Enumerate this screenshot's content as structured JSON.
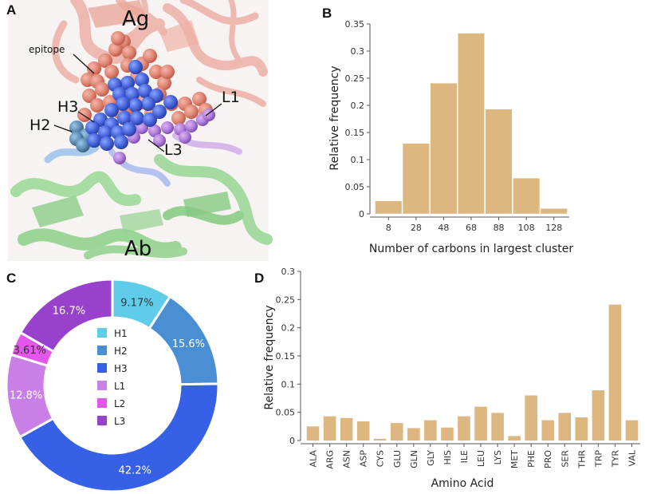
{
  "panels": {
    "a": {
      "letter": "A",
      "labels": {
        "ag": "Ag",
        "ab": "Ab",
        "epitope": "epitope",
        "h3": "H3",
        "h2": "H2",
        "l1": "L1",
        "l3": "L3"
      }
    },
    "b": {
      "letter": "B"
    },
    "c": {
      "letter": "C"
    },
    "d": {
      "letter": "D"
    }
  },
  "colors": {
    "bar": "#ddb77f",
    "H1": "#5fcdea",
    "H2": "#4a8fd4",
    "H3": "#3660e6",
    "L1": "#c97fe6",
    "L2": "#e455ea",
    "L3": "#9841cc"
  },
  "chart_data": [
    {
      "id": "b",
      "type": "bar",
      "categories": [
        "8",
        "28",
        "48",
        "68",
        "88",
        "108",
        "128"
      ],
      "bin_edges": [
        -2,
        18,
        38,
        58,
        78,
        98,
        118,
        138
      ],
      "values": [
        0.024,
        0.13,
        0.241,
        0.333,
        0.193,
        0.066,
        0.01
      ],
      "xlabel": "Number of carbons in largest cluster",
      "ylabel": "Relative frequency",
      "ylim": [
        0,
        0.35
      ],
      "yticks": [
        "0",
        "0.05",
        "0.1",
        "0.15",
        "0.2",
        "0.25",
        "0.3",
        "0.35"
      ]
    },
    {
      "id": "c",
      "type": "pie",
      "labels": [
        "H1",
        "H2",
        "H3",
        "L1",
        "L2",
        "L3"
      ],
      "values": [
        9.17,
        15.6,
        42.2,
        12.8,
        3.61,
        16.7
      ],
      "value_labels": [
        "9.17%",
        "15.6%",
        "42.2%",
        "12.8%",
        "3.61%",
        "16.7%"
      ],
      "legend": "center"
    },
    {
      "id": "d",
      "type": "bar",
      "categories": [
        "ALA",
        "ARG",
        "ASN",
        "ASP",
        "CYS",
        "GLU",
        "GLN",
        "GLY",
        "HIS",
        "ILE",
        "LEU",
        "LYS",
        "MET",
        "PHE",
        "PRO",
        "SER",
        "THR",
        "TRP",
        "TYR",
        "VAL"
      ],
      "values": [
        0.025,
        0.043,
        0.04,
        0.034,
        0.003,
        0.031,
        0.022,
        0.036,
        0.023,
        0.043,
        0.06,
        0.049,
        0.008,
        0.08,
        0.036,
        0.049,
        0.041,
        0.089,
        0.241,
        0.036
      ],
      "xlabel": "Amino Acid",
      "ylabel": "Relative frequency",
      "ylim": [
        0,
        0.3
      ],
      "yticks": [
        "0",
        "0.05",
        "0.1",
        "0.15",
        "0.2",
        "0.25",
        "0.3"
      ]
    }
  ]
}
